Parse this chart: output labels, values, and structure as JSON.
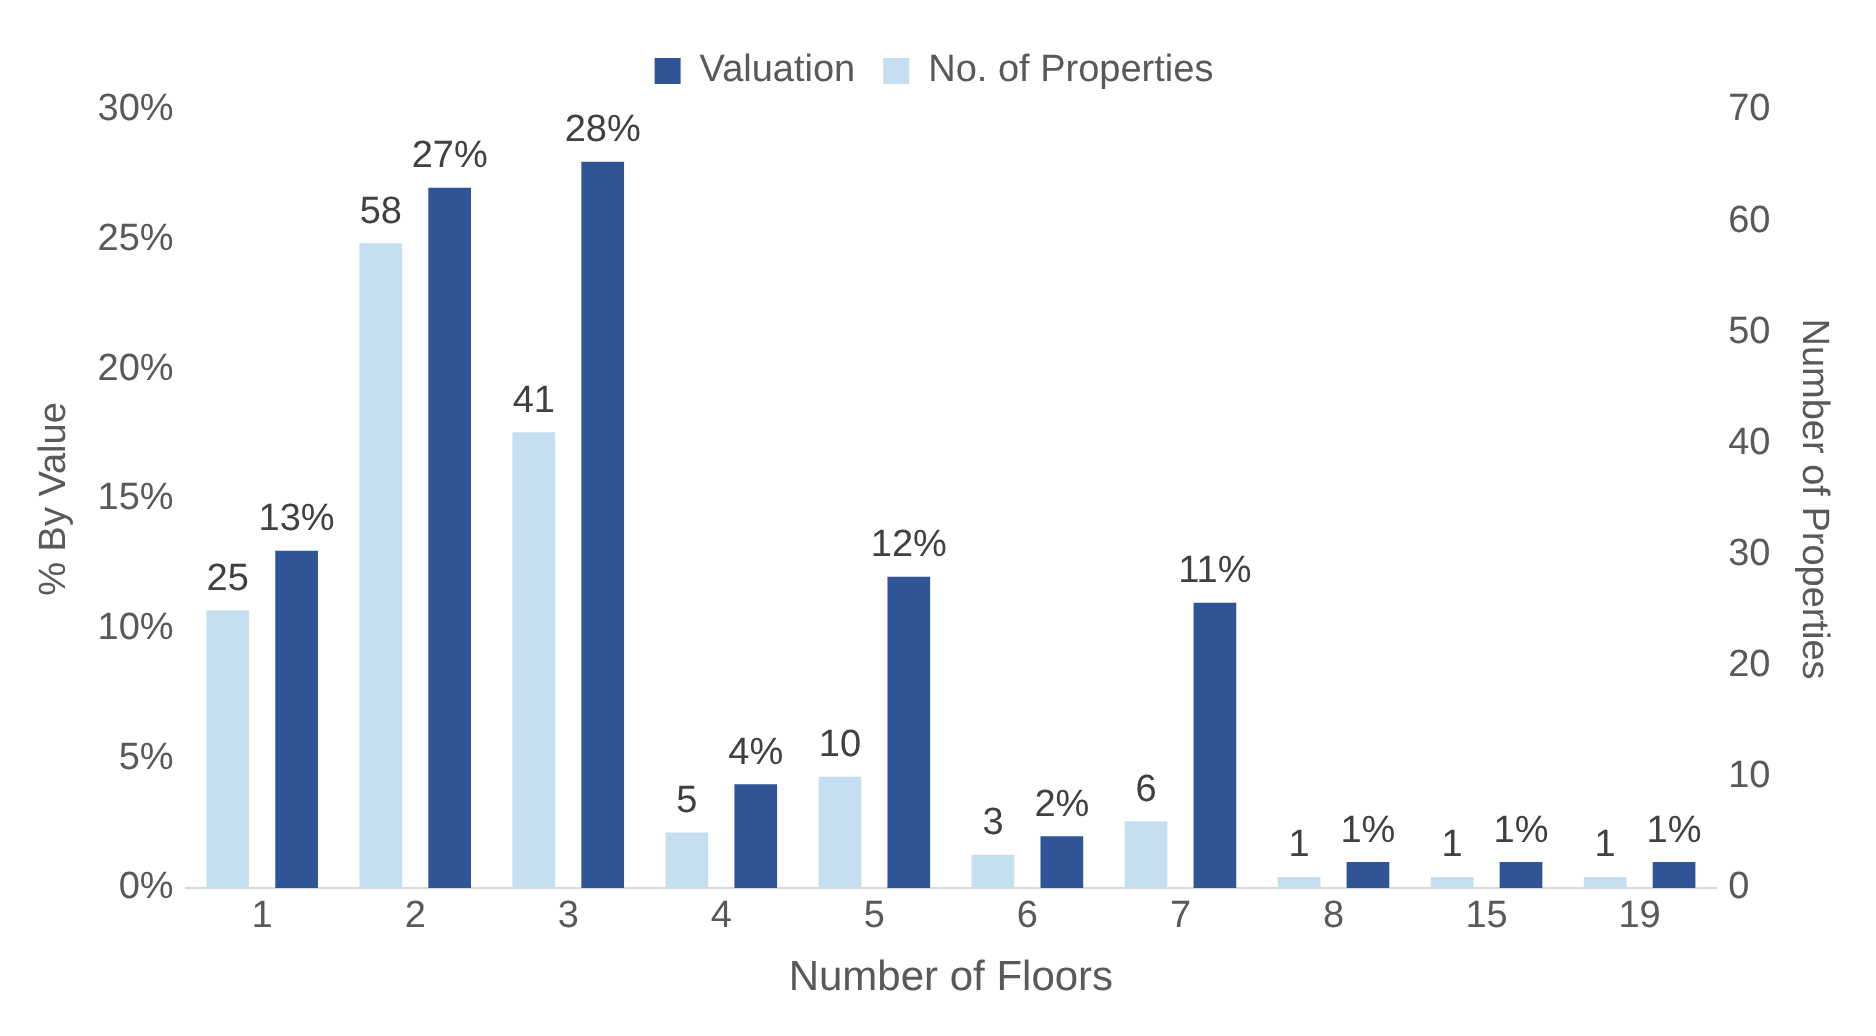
{
  "chart_data": {
    "type": "bar",
    "xlabel": "Number of Floors",
    "ylabel": "% By Value",
    "y2label": "Number of Properties",
    "categories": [
      "1",
      "2",
      "3",
      "4",
      "5",
      "6",
      "7",
      "8",
      "15",
      "19"
    ],
    "series": [
      {
        "name": "Valuation",
        "color": "#2f5597",
        "axis": "y",
        "values": [
          13,
          27,
          28,
          4,
          12,
          2,
          11,
          1,
          1,
          1
        ],
        "value_labels": [
          "13%",
          "27%",
          "28%",
          "4%",
          "12%",
          "2%",
          "11%",
          "1%",
          "1%",
          "1%"
        ]
      },
      {
        "name": "No. of Properties",
        "color": "#c5dff0",
        "axis": "y2",
        "values": [
          25,
          58,
          41,
          5,
          10,
          3,
          6,
          1,
          1,
          1
        ],
        "value_labels": [
          "25",
          "58",
          "41",
          "5",
          "10",
          "3",
          "6",
          "1",
          "1",
          "1"
        ]
      }
    ],
    "ylim": [
      0,
      30
    ],
    "yticks": [
      {
        "value": 0,
        "label": "0%"
      },
      {
        "value": 5,
        "label": "5%"
      },
      {
        "value": 10,
        "label": "10%"
      },
      {
        "value": 15,
        "label": "15%"
      },
      {
        "value": 20,
        "label": "20%"
      },
      {
        "value": 25,
        "label": "25%"
      },
      {
        "value": 30,
        "label": "30%"
      }
    ],
    "y2lim": [
      0,
      70
    ],
    "y2ticks": [
      0,
      10,
      20,
      30,
      40,
      50,
      60,
      70
    ],
    "grid": false,
    "legend": "top"
  }
}
